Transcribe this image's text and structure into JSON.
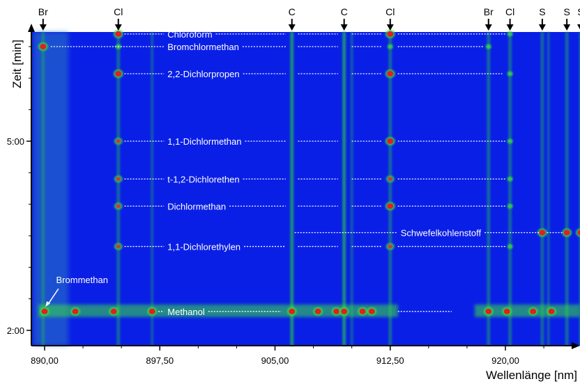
{
  "chart_data": {
    "type": "heatmap",
    "xlabel": "Wellenlänge [nm]",
    "ylabel": "Zeit [min]",
    "xlim": [
      889.6,
      926.0
    ],
    "ylim": [
      1.9,
      7.1
    ],
    "x_ticks": [
      {
        "value": 890.0,
        "label": "890,00"
      },
      {
        "value": 897.5,
        "label": "897,50"
      },
      {
        "value": 905.0,
        "label": "905,00"
      },
      {
        "value": 912.5,
        "label": "912,50"
      },
      {
        "value": 920.0,
        "label": "920,00"
      }
    ],
    "y_ticks": [
      {
        "value": 5.0,
        "label": "5:00"
      },
      {
        "value": 2.0,
        "label": "2:00"
      }
    ],
    "element_markers": [
      {
        "label": "Br",
        "wavelength": 889.9
      },
      {
        "label": "Cl",
        "wavelength": 894.8
      },
      {
        "label": "C",
        "wavelength": 906.1
      },
      {
        "label": "C",
        "wavelength": 909.5
      },
      {
        "label": "Cl",
        "wavelength": 912.5
      },
      {
        "label": "Br",
        "wavelength": 918.9
      },
      {
        "label": "Cl",
        "wavelength": 920.3
      },
      {
        "label": "S",
        "wavelength": 922.4
      },
      {
        "label": "S",
        "wavelength": 924.0
      },
      {
        "label": "S",
        "wavelength": 924.9
      }
    ],
    "compounds": [
      {
        "name": "Chloroform",
        "time": 6.7
      },
      {
        "name": "Bromchlormethan",
        "time": 6.5
      },
      {
        "name": "2,2-Dichlorpropen",
        "time": 6.07
      },
      {
        "name": "1,1-Dichlormethan",
        "time": 5.0
      },
      {
        "name": "t-1,2-Dichlorethen",
        "time": 4.4
      },
      {
        "name": "Dichlormethan",
        "time": 3.97
      },
      {
        "name": "Schwefelkohlenstoff",
        "time": 3.55
      },
      {
        "name": "1,1-Dichlorethylen",
        "time": 3.33
      },
      {
        "name": "Methanol",
        "time": 2.3
      },
      {
        "name": "Brommethan",
        "time": 2.34
      }
    ],
    "peaks": [
      {
        "x": 889.9,
        "y": 6.5,
        "level": "high"
      },
      {
        "x": 894.8,
        "y": 6.7,
        "level": "high"
      },
      {
        "x": 894.8,
        "y": 6.5,
        "level": "low"
      },
      {
        "x": 894.8,
        "y": 6.07,
        "level": "high"
      },
      {
        "x": 894.8,
        "y": 5.0,
        "level": "mid"
      },
      {
        "x": 894.8,
        "y": 4.4,
        "level": "mid"
      },
      {
        "x": 894.8,
        "y": 3.97,
        "level": "mid"
      },
      {
        "x": 894.8,
        "y": 3.33,
        "level": "mid"
      },
      {
        "x": 912.5,
        "y": 6.7,
        "level": "high"
      },
      {
        "x": 912.5,
        "y": 6.5,
        "level": "low"
      },
      {
        "x": 912.5,
        "y": 6.07,
        "level": "high"
      },
      {
        "x": 912.5,
        "y": 5.0,
        "level": "high"
      },
      {
        "x": 912.5,
        "y": 4.4,
        "level": "mid"
      },
      {
        "x": 912.5,
        "y": 3.97,
        "level": "high"
      },
      {
        "x": 912.5,
        "y": 3.33,
        "level": "mid"
      },
      {
        "x": 918.9,
        "y": 6.5,
        "level": "low"
      },
      {
        "x": 920.3,
        "y": 6.7,
        "level": "low"
      },
      {
        "x": 920.3,
        "y": 6.07,
        "level": "low"
      },
      {
        "x": 920.3,
        "y": 5.0,
        "level": "low"
      },
      {
        "x": 920.3,
        "y": 4.4,
        "level": "low"
      },
      {
        "x": 920.3,
        "y": 3.97,
        "level": "low"
      },
      {
        "x": 920.3,
        "y": 3.33,
        "level": "low"
      },
      {
        "x": 922.4,
        "y": 3.55,
        "level": "high"
      },
      {
        "x": 924.0,
        "y": 3.55,
        "level": "high"
      },
      {
        "x": 924.9,
        "y": 3.55,
        "level": "high"
      },
      {
        "x": 890.0,
        "y": 2.3,
        "level": "high"
      },
      {
        "x": 892.0,
        "y": 2.3,
        "level": "high"
      },
      {
        "x": 894.5,
        "y": 2.3,
        "level": "high"
      },
      {
        "x": 897.0,
        "y": 2.3,
        "level": "high"
      },
      {
        "x": 906.1,
        "y": 2.3,
        "level": "high"
      },
      {
        "x": 907.8,
        "y": 2.3,
        "level": "high"
      },
      {
        "x": 909.0,
        "y": 2.3,
        "level": "high"
      },
      {
        "x": 909.5,
        "y": 2.3,
        "level": "high"
      },
      {
        "x": 910.7,
        "y": 2.3,
        "level": "high"
      },
      {
        "x": 911.3,
        "y": 2.3,
        "level": "high"
      },
      {
        "x": 918.9,
        "y": 2.3,
        "level": "high"
      },
      {
        "x": 920.1,
        "y": 2.3,
        "level": "high"
      },
      {
        "x": 921.8,
        "y": 2.3,
        "level": "high"
      },
      {
        "x": 923.0,
        "y": 2.3,
        "level": "high"
      }
    ],
    "colors": {
      "background": "#0a1fe6",
      "low": "#1aa06a",
      "mid": "#38e040",
      "high": "#e02020",
      "annotation": "#ffffff",
      "axis": "#000000"
    },
    "grid": false
  }
}
